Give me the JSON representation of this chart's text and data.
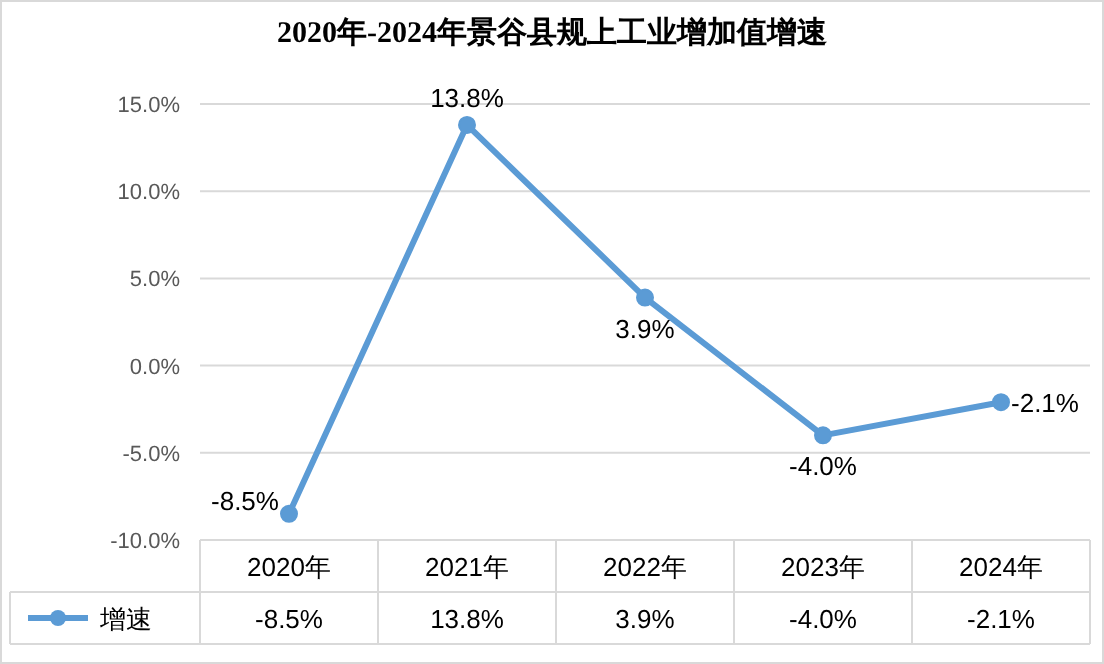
{
  "chart_data": {
    "type": "line",
    "title": "2020年-2024年景谷县规上工业增加值增速",
    "categories": [
      "2020年",
      "2021年",
      "2022年",
      "2023年",
      "2024年"
    ],
    "series": [
      {
        "name": "增速",
        "color": "#5b9bd5",
        "values": [
          -8.5,
          13.8,
          3.9,
          -4.0,
          -2.1
        ],
        "value_labels": [
          "-8.5%",
          "13.8%",
          "3.9%",
          "-4.0%",
          "-2.1%"
        ]
      }
    ],
    "ylim": [
      -10,
      15
    ],
    "yticks": [
      {
        "value": -10,
        "label": "-10.0%"
      },
      {
        "value": -5,
        "label": "-5.0%"
      },
      {
        "value": 0,
        "label": "0.0%"
      },
      {
        "value": 5,
        "label": "5.0%"
      },
      {
        "value": 10,
        "label": "10.0%"
      },
      {
        "value": 15,
        "label": "15.0%"
      }
    ],
    "grid": "y",
    "legend": "bottom",
    "marker": "circle",
    "line_style": "solid"
  }
}
